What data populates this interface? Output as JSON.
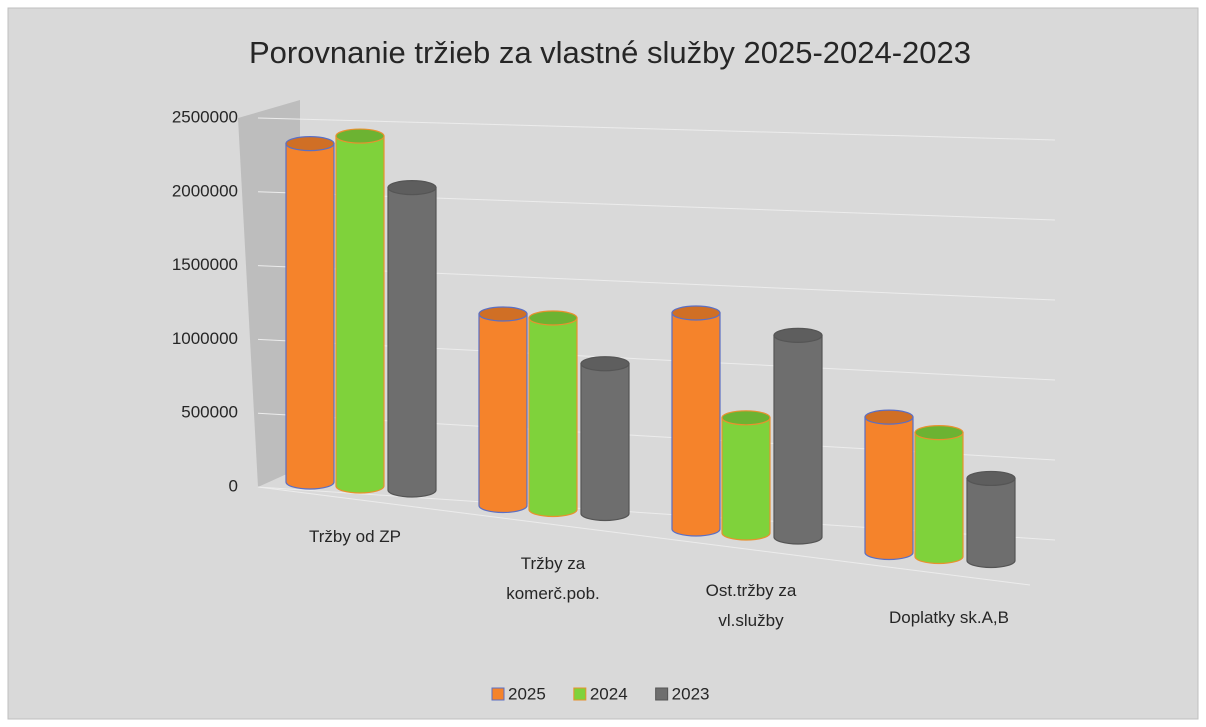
{
  "chart_data": {
    "type": "bar3d",
    "title": "Porovnanie tržieb za vlastné služby 2025-2024-2023",
    "categories": [
      "Tržby od ZP",
      "Tržby za\nkomerč.pob.",
      "Ost.tržby za\nvl.služby",
      "Doplatky sk.A,B"
    ],
    "series": [
      {
        "name": "2025",
        "color": "#f5832b",
        "values": [
          2350000,
          1330000,
          1500000,
          940000
        ]
      },
      {
        "name": "2024",
        "color": "#7fd23b",
        "values": [
          2430000,
          1330000,
          800000,
          860000
        ]
      },
      {
        "name": "2023",
        "color": "#6e6e6e",
        "values": [
          2100000,
          1040000,
          1400000,
          570000
        ]
      }
    ],
    "ylim": [
      0,
      2500000
    ],
    "yticks": [
      0,
      500000,
      1000000,
      1500000,
      2000000,
      2500000
    ],
    "grid": true,
    "legend": "bottom"
  }
}
